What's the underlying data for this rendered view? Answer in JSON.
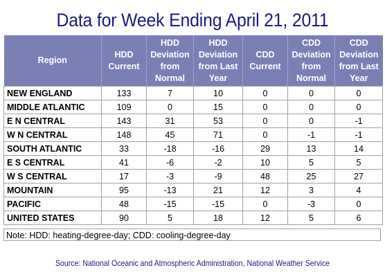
{
  "title": "Data for Week Ending April 21, 2011",
  "columns": [
    {
      "line1": "Region",
      "line2": "",
      "line3": "",
      "line4": ""
    },
    {
      "line1": "HDD",
      "line2": "Current",
      "line3": "",
      "line4": ""
    },
    {
      "line1": "HDD",
      "line2": "Deviation",
      "line3": "from",
      "line4": "Normal"
    },
    {
      "line1": "HDD",
      "line2": "Deviation",
      "line3": "from Last",
      "line4": "Year"
    },
    {
      "line1": "CDD",
      "line2": "Current",
      "line3": "",
      "line4": ""
    },
    {
      "line1": "CDD",
      "line2": "Deviation",
      "line3": "from",
      "line4": "Normal"
    },
    {
      "line1": "CDD",
      "line2": "Deviation",
      "line3": "from Last",
      "line4": "Year"
    }
  ],
  "rows": [
    [
      "NEW ENGLAND",
      "133",
      "7",
      "10",
      "0",
      "0",
      "0"
    ],
    [
      "MIDDLE ATLANTIC",
      "109",
      "0",
      "15",
      "0",
      "0",
      "0"
    ],
    [
      "E N CENTRAL",
      "143",
      "31",
      "53",
      "0",
      "0",
      "-1"
    ],
    [
      "W N CENTRAL",
      "148",
      "45",
      "71",
      "0",
      "-1",
      "-1"
    ],
    [
      "SOUTH ATLANTIC",
      "33",
      "-18",
      "-16",
      "29",
      "13",
      "14"
    ],
    [
      "E S CENTRAL",
      "41",
      "-6",
      "-2",
      "10",
      "5",
      "5"
    ],
    [
      "W S CENTRAL",
      "17",
      "-3",
      "-9",
      "48",
      "25",
      "27"
    ],
    [
      "MOUNTAIN",
      "95",
      "-13",
      "21",
      "12",
      "3",
      "4"
    ],
    [
      "PACIFIC",
      "48",
      "-15",
      "-15",
      "0",
      "-3",
      "0"
    ],
    [
      "UNITED STATES",
      "90",
      "5",
      "18",
      "12",
      "5",
      "6"
    ]
  ],
  "note": "Note: HDD: heating-degree-day; CDD: cooling-degree-day",
  "source": "Source:  National Oceanic and Atmospheric Administration, National Weather Service",
  "colors": {
    "header_bg": "#7a7fb4",
    "title": "#1a1a80",
    "source": "#1a1a80"
  }
}
